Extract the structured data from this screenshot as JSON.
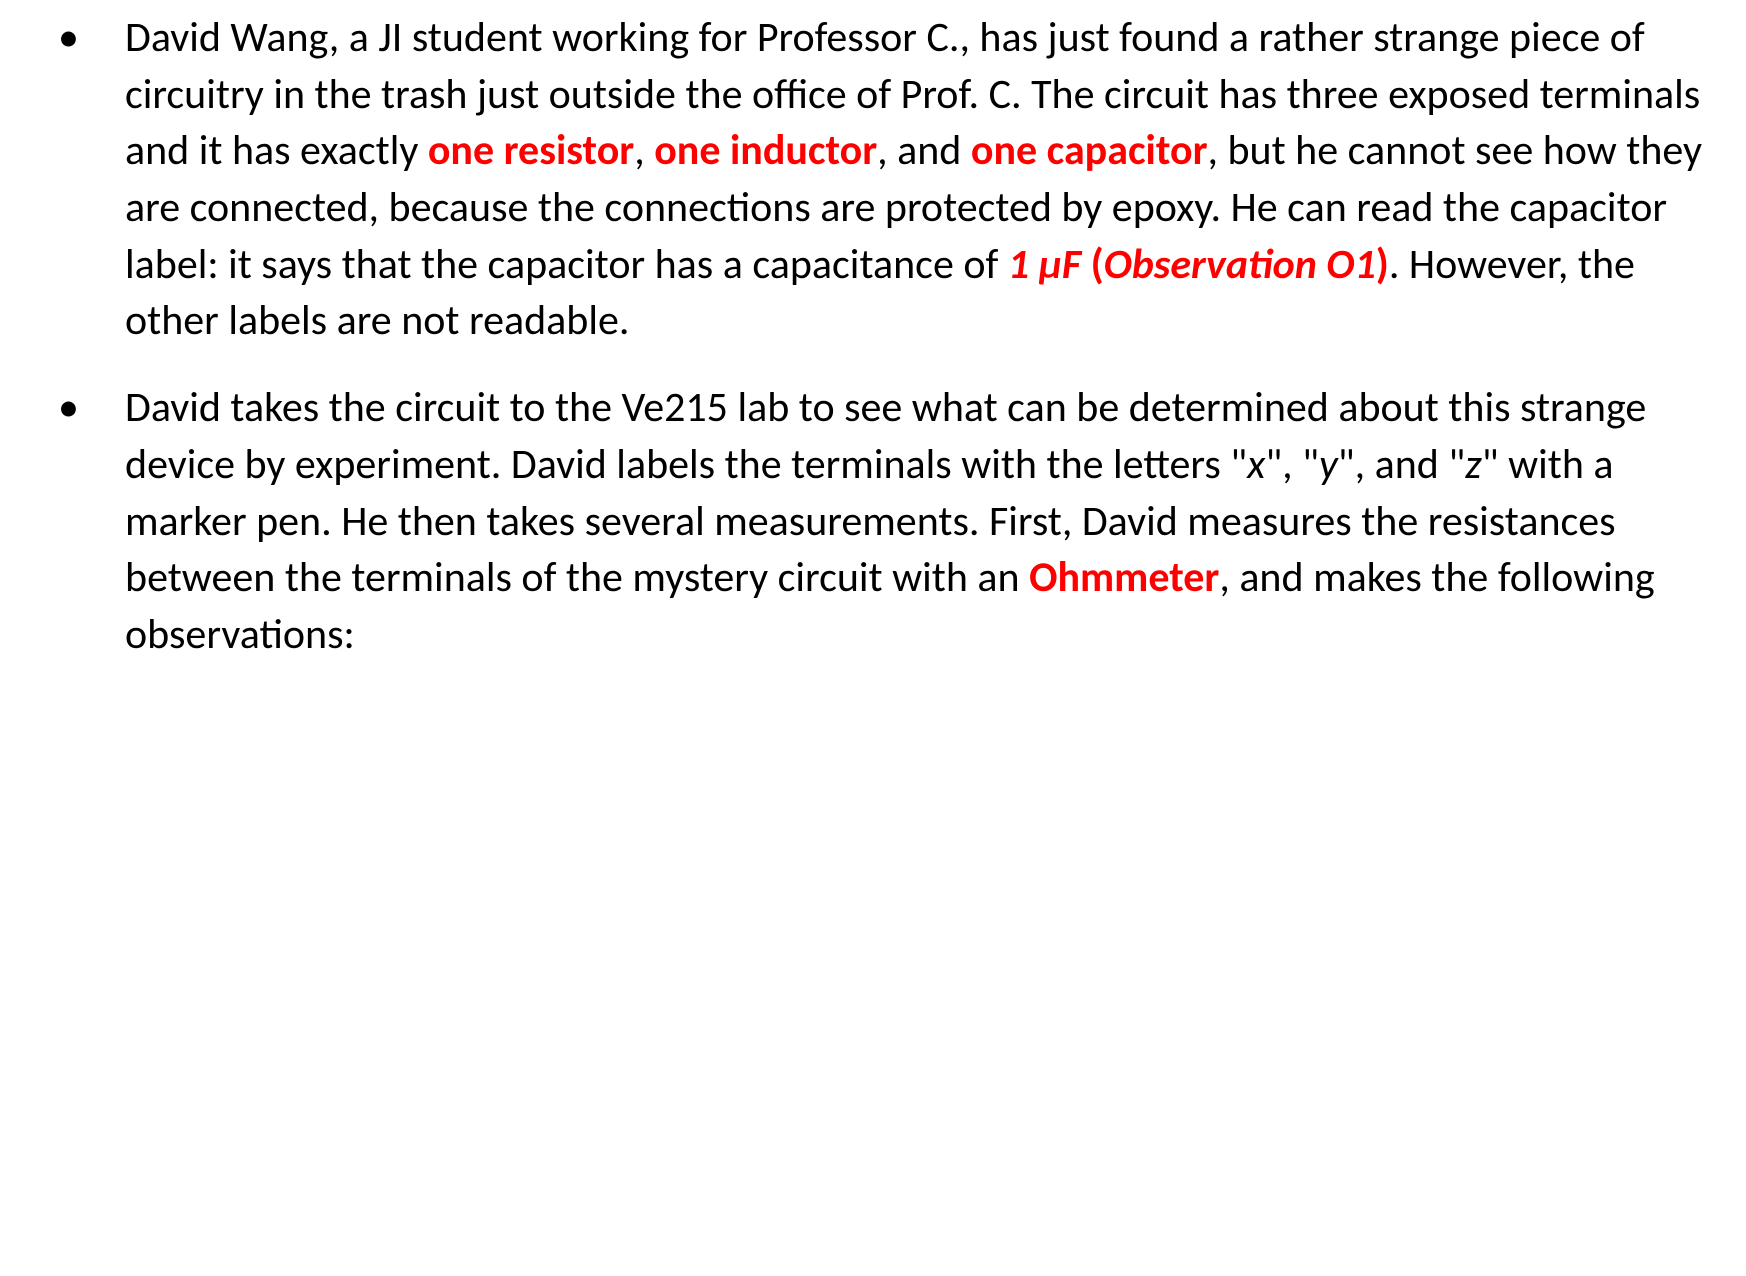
{
  "colors": {
    "text": "#000000",
    "highlight": "#ff0000",
    "background": "#ffffff"
  },
  "typography": {
    "font_family": "Calibri",
    "body_fontsize_pt": 32,
    "line_height": 1.35,
    "bullet_char": "•"
  },
  "para1": {
    "t1": "David Wang, a JI student working for Professor C., has just found a rather strange piece of circuitry in the trash just outside the office of Prof. C. The circuit has three exposed terminals and it has exactly ",
    "h1": "one resistor",
    "t2": ", ",
    "h2": "one inductor",
    "t3": ", and ",
    "h3": "one capacitor",
    "t4": ", but he cannot see how they are connected, because the connections are protected by epoxy. He can read the capacitor label: it says that the capacitor has a capacitance of ",
    "h4_value": "1 µF",
    "h4_open": " (",
    "h4_obs": "Observation O1",
    "h4_close": ")",
    "t5": ". However, the other labels are not readable."
  },
  "para2": {
    "t1": "David takes the circuit to the Ve215 lab to see what can be determined about this strange device by experiment. David labels the terminals with the letters \"",
    "x": "x",
    "t2": "\", \"",
    "y": "y",
    "t3": "\", and \"",
    "z": "z",
    "t4": "\" with a marker pen. He then takes several measurements. First, David measures the resistances between the terminals of the mystery circuit with an ",
    "h1": "Ohmmeter",
    "t5": ", and makes the following observations:"
  }
}
